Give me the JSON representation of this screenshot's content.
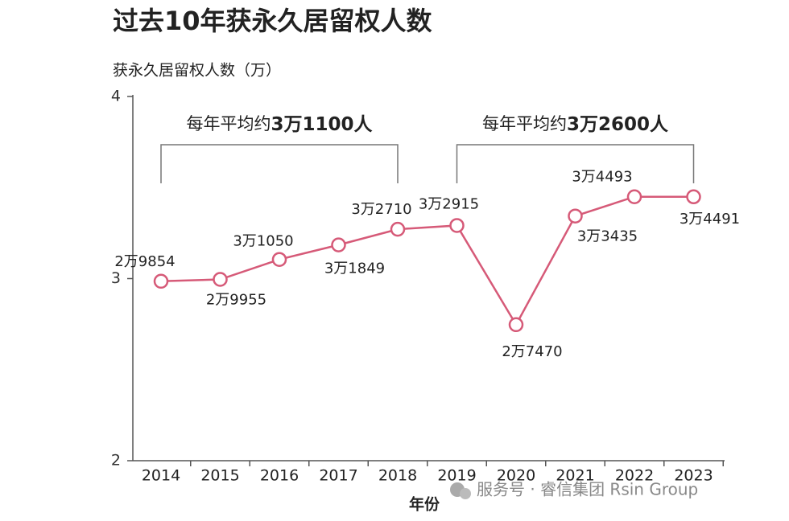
{
  "chart_data": {
    "type": "line",
    "title": "过去10年获永久居留权人数",
    "y_label": "获永久居留权人数（万）",
    "x_label": "年份",
    "categories": [
      "2014",
      "2015",
      "2016",
      "2017",
      "2018",
      "2019",
      "2020",
      "2021",
      "2022",
      "2023"
    ],
    "series": [
      {
        "name": "获永久居留权人数",
        "color": "#d65a78",
        "values": [
          2.9854,
          2.9955,
          3.105,
          3.1849,
          3.271,
          3.2915,
          2.747,
          3.3435,
          3.4493,
          3.4491
        ],
        "value_labels": [
          "2万9854",
          "2万9955",
          "3万1050",
          "3万1849",
          "3万2710",
          "3万2915",
          "2万7470",
          "3万3435",
          "3万4493",
          "3万4491"
        ]
      }
    ],
    "ylim": [
      2,
      4
    ],
    "yticks": [
      2,
      3,
      4
    ],
    "annotations": [
      {
        "parts": [
          "每年平均约",
          "3万1100人"
        ]
      },
      {
        "parts": [
          "每年平均约",
          "3万2600人"
        ]
      }
    ],
    "watermark": "服务号 · 睿信集团 Rsin Group"
  }
}
